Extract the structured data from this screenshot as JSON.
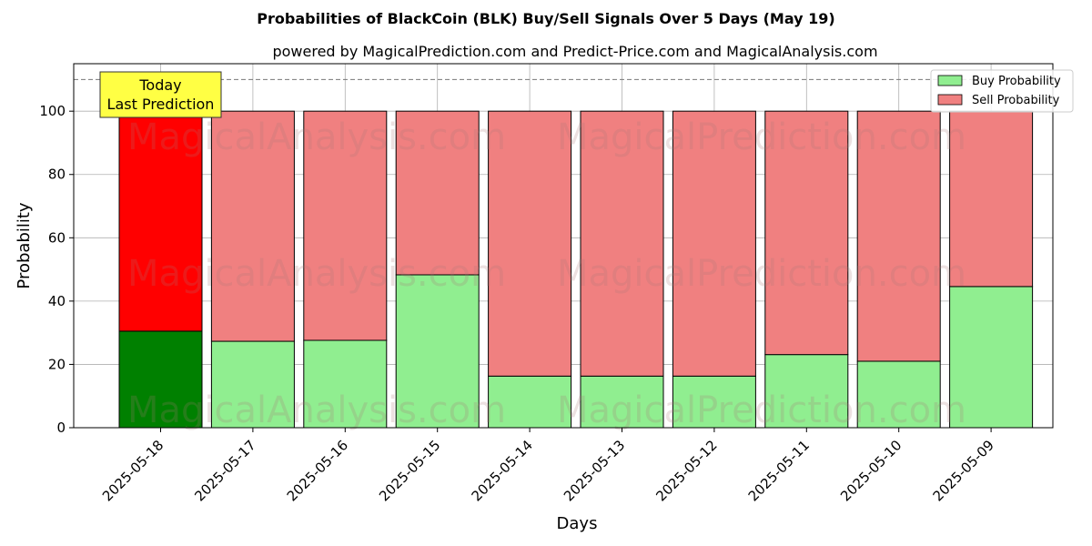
{
  "chart_data": {
    "type": "bar",
    "title": "Probabilities of BlackCoin (BLK) Buy/Sell Signals Over 5 Days (May 19)",
    "subtitle": "powered by MagicalPrediction.com and Predict-Price.com and MagicalAnalysis.com",
    "xlabel": "Days",
    "ylabel": "Probability",
    "ylim": [
      0,
      115
    ],
    "yticks": [
      0,
      20,
      40,
      60,
      80,
      100
    ],
    "categories": [
      "2025-05-18",
      "2025-05-17",
      "2025-05-16",
      "2025-05-15",
      "2025-05-14",
      "2025-05-13",
      "2025-05-12",
      "2025-05-11",
      "2025-05-10",
      "2025-05-09"
    ],
    "stacked": true,
    "series": [
      {
        "name": "Buy Probability",
        "values": [
          30.5,
          27.3,
          27.6,
          48.3,
          16.3,
          16.3,
          16.3,
          23.1,
          21.0,
          44.6
        ]
      },
      {
        "name": "Sell Probability",
        "values": [
          69.5,
          72.7,
          72.4,
          51.7,
          83.7,
          83.7,
          83.7,
          76.9,
          79.0,
          55.4
        ]
      }
    ],
    "reference_line": 110,
    "annotation": {
      "line1": "Today",
      "line2": "Last Prediction"
    },
    "legend_placement": "top-right",
    "grid": true,
    "colors": {
      "buy": "#90ee90",
      "sell": "#f08080",
      "buy_today": "#008000",
      "sell_today": "#ff0000",
      "annotation_bg": "#ffff44"
    },
    "watermarks": [
      "MagicalAnalysis.com",
      "MagicalPrediction.com"
    ]
  }
}
